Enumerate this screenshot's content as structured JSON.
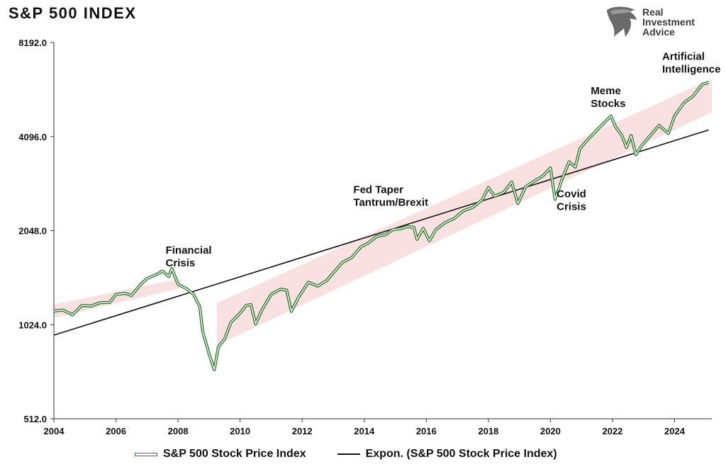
{
  "chart_data": {
    "type": "line",
    "title": "S&P 500 INDEX",
    "yscale": "log2",
    "ylim": [
      512,
      8192
    ],
    "xlim": [
      2004,
      2025.2
    ],
    "yticks": [
      {
        "value": 512,
        "label": "512.0"
      },
      {
        "value": 1024,
        "label": "1024.0"
      },
      {
        "value": 2048,
        "label": "2048.0"
      },
      {
        "value": 4096,
        "label": "4096.0"
      },
      {
        "value": 8192,
        "label": "8192.0"
      }
    ],
    "xticks": [
      {
        "value": 2004,
        "label": "2004"
      },
      {
        "value": 2006,
        "label": "2006"
      },
      {
        "value": 2008,
        "label": "2008"
      },
      {
        "value": 2010,
        "label": "2010"
      },
      {
        "value": 2012,
        "label": "2012"
      },
      {
        "value": 2014,
        "label": "2014"
      },
      {
        "value": 2016,
        "label": "2016"
      },
      {
        "value": 2018,
        "label": "2018"
      },
      {
        "value": 2020,
        "label": "2020"
      },
      {
        "value": 2022,
        "label": "2022"
      },
      {
        "value": 2024,
        "label": "2024"
      }
    ],
    "series": [
      {
        "name": "S&P 500 Stock Price Index",
        "color": "#2e7a2e",
        "points": [
          [
            2004.0,
            1132
          ],
          [
            2004.3,
            1140
          ],
          [
            2004.6,
            1101
          ],
          [
            2004.9,
            1180
          ],
          [
            2005.2,
            1175
          ],
          [
            2005.5,
            1205
          ],
          [
            2005.8,
            1207
          ],
          [
            2006.0,
            1280
          ],
          [
            2006.3,
            1290
          ],
          [
            2006.5,
            1270
          ],
          [
            2006.8,
            1380
          ],
          [
            2007.0,
            1438
          ],
          [
            2007.3,
            1482
          ],
          [
            2007.5,
            1520
          ],
          [
            2007.7,
            1460
          ],
          [
            2007.8,
            1549
          ],
          [
            2008.0,
            1380
          ],
          [
            2008.3,
            1330
          ],
          [
            2008.5,
            1280
          ],
          [
            2008.7,
            1170
          ],
          [
            2008.8,
            968
          ],
          [
            2008.9,
            896
          ],
          [
            2009.0,
            825
          ],
          [
            2009.17,
            735
          ],
          [
            2009.3,
            870
          ],
          [
            2009.5,
            920
          ],
          [
            2009.7,
            1040
          ],
          [
            2010.0,
            1115
          ],
          [
            2010.2,
            1180
          ],
          [
            2010.35,
            1187
          ],
          [
            2010.5,
            1030
          ],
          [
            2010.7,
            1140
          ],
          [
            2011.0,
            1280
          ],
          [
            2011.3,
            1330
          ],
          [
            2011.5,
            1320
          ],
          [
            2011.65,
            1130
          ],
          [
            2011.9,
            1260
          ],
          [
            2012.2,
            1400
          ],
          [
            2012.5,
            1360
          ],
          [
            2012.8,
            1420
          ],
          [
            2013.0,
            1500
          ],
          [
            2013.3,
            1620
          ],
          [
            2013.6,
            1680
          ],
          [
            2013.9,
            1820
          ],
          [
            2014.1,
            1860
          ],
          [
            2014.4,
            1960
          ],
          [
            2014.7,
            1990
          ],
          [
            2014.9,
            2059
          ],
          [
            2015.2,
            2080
          ],
          [
            2015.4,
            2110
          ],
          [
            2015.6,
            2100
          ],
          [
            2015.7,
            1920
          ],
          [
            2015.9,
            2080
          ],
          [
            2016.1,
            1900
          ],
          [
            2016.3,
            2060
          ],
          [
            2016.6,
            2170
          ],
          [
            2016.9,
            2240
          ],
          [
            2017.2,
            2370
          ],
          [
            2017.5,
            2430
          ],
          [
            2017.8,
            2570
          ],
          [
            2018.0,
            2810
          ],
          [
            2018.2,
            2640
          ],
          [
            2018.5,
            2720
          ],
          [
            2018.75,
            2930
          ],
          [
            2018.95,
            2500
          ],
          [
            2019.2,
            2830
          ],
          [
            2019.5,
            2960
          ],
          [
            2019.75,
            3060
          ],
          [
            2020.0,
            3250
          ],
          [
            2020.15,
            2580
          ],
          [
            2020.4,
            3040
          ],
          [
            2020.6,
            3400
          ],
          [
            2020.8,
            3270
          ],
          [
            2020.95,
            3750
          ],
          [
            2021.2,
            4000
          ],
          [
            2021.5,
            4300
          ],
          [
            2021.7,
            4500
          ],
          [
            2021.95,
            4766
          ],
          [
            2022.1,
            4400
          ],
          [
            2022.3,
            4130
          ],
          [
            2022.45,
            3780
          ],
          [
            2022.6,
            4130
          ],
          [
            2022.75,
            3585
          ],
          [
            2022.95,
            3840
          ],
          [
            2023.2,
            4109
          ],
          [
            2023.5,
            4450
          ],
          [
            2023.8,
            4190
          ],
          [
            2024.0,
            4770
          ],
          [
            2024.3,
            5250
          ],
          [
            2024.6,
            5520
          ],
          [
            2024.9,
            6030
          ],
          [
            2025.1,
            6100
          ]
        ]
      },
      {
        "name": "Expon. (S&P 500 Stock Price Index)",
        "color": "#111111",
        "points": [
          [
            2004.0,
            948
          ],
          [
            2025.1,
            4300
          ]
        ]
      }
    ],
    "bands": [
      {
        "points": [
          [
            2004.0,
            1075
          ],
          [
            2008.1,
            1340
          ],
          [
            2008.1,
            1440
          ],
          [
            2004.0,
            1190
          ]
        ]
      },
      {
        "points": [
          [
            2009.25,
            880
          ],
          [
            2025.2,
            4900
          ],
          [
            2025.2,
            6270
          ],
          [
            2009.25,
            1200
          ]
        ]
      }
    ],
    "annotations": [
      {
        "lines": [
          "Financial",
          "Crisis"
        ],
        "x": 2007.6,
        "y": 1730
      },
      {
        "lines": [
          "Fed Taper",
          "Tantrum/Brexit"
        ],
        "x": 2013.65,
        "y": 2700
      },
      {
        "lines": [
          "Covid",
          "Crisis"
        ],
        "x": 2020.2,
        "y": 2620
      },
      {
        "lines": [
          "Meme",
          "Stocks"
        ],
        "x": 2021.3,
        "y": 5600
      },
      {
        "lines": [
          "Artificial",
          "Intelligence"
        ],
        "x": 2023.6,
        "y": 7200
      }
    ],
    "legend_position": "bottom",
    "grid": false
  },
  "header": {
    "title": "S&P 500 INDEX"
  },
  "brand": {
    "line1": "Real",
    "line2": "Investment",
    "line3": "Advice",
    "icon": "eagle-head-icon",
    "color": "#3a3a3a"
  },
  "legend": {
    "item1": "S&P 500 Stock Price Index",
    "item2": "Expon. (S&P 500 Stock Price Index)"
  }
}
